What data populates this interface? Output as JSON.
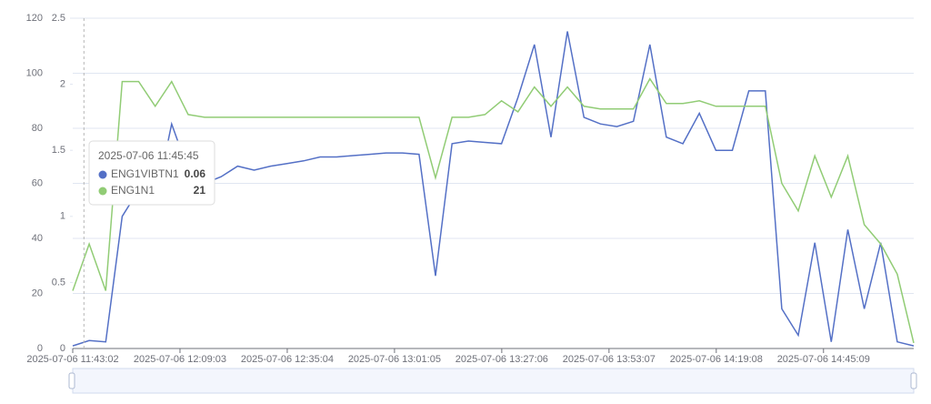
{
  "chart_data": {
    "type": "line",
    "x": [
      "2025-07-06 11:43:02",
      "2025-07-06 11:47:02",
      "2025-07-06 11:51:02",
      "2025-07-06 11:55:02",
      "2025-07-06 11:59:02",
      "2025-07-06 12:03:02",
      "2025-07-06 12:07:02",
      "2025-07-06 12:11:02",
      "2025-07-06 12:15:02",
      "2025-07-06 12:19:02",
      "2025-07-06 12:23:02",
      "2025-07-06 12:27:02",
      "2025-07-06 12:31:02",
      "2025-07-06 12:35:02",
      "2025-07-06 12:39:02",
      "2025-07-06 12:43:02",
      "2025-07-06 12:47:02",
      "2025-07-06 12:51:02",
      "2025-07-06 12:55:02",
      "2025-07-06 12:59:02",
      "2025-07-06 13:03:02",
      "2025-07-06 13:07:02",
      "2025-07-06 13:11:02",
      "2025-07-06 13:15:02",
      "2025-07-06 13:19:02",
      "2025-07-06 13:23:02",
      "2025-07-06 13:27:02",
      "2025-07-06 13:31:02",
      "2025-07-06 13:35:02",
      "2025-07-06 13:39:02",
      "2025-07-06 13:43:02",
      "2025-07-06 13:47:02",
      "2025-07-06 13:51:02",
      "2025-07-06 13:55:02",
      "2025-07-06 13:59:02",
      "2025-07-06 14:03:02",
      "2025-07-06 14:07:02",
      "2025-07-06 14:11:02",
      "2025-07-06 14:15:02",
      "2025-07-06 14:19:02",
      "2025-07-06 14:23:02",
      "2025-07-06 14:27:02",
      "2025-07-06 14:31:02",
      "2025-07-06 14:35:02",
      "2025-07-06 14:39:02",
      "2025-07-06 14:43:02",
      "2025-07-06 14:47:02",
      "2025-07-06 14:51:02",
      "2025-07-06 14:55:02",
      "2025-07-06 14:59:02",
      "2025-07-06 15:03:02",
      "2025-07-06 15:07:02"
    ],
    "xlim": [
      "2025-07-06 11:43:02",
      "2025-07-06 15:07:02"
    ],
    "xticks": [
      "2025-07-06 11:43:02",
      "2025-07-06 12:09:03",
      "2025-07-06 12:35:04",
      "2025-07-06 13:01:05",
      "2025-07-06 13:27:06",
      "2025-07-06 13:53:07",
      "2025-07-06 14:19:08",
      "2025-07-06 14:45:09"
    ],
    "ylim": [
      0,
      120
    ],
    "yticks": [
      0,
      20,
      40,
      60,
      80,
      100,
      120
    ],
    "y2lim": [
      0,
      2.5
    ],
    "y2ticks": [
      0,
      0.5,
      1,
      1.5,
      2,
      2.5
    ],
    "grid": true,
    "series": [
      {
        "name": "ENG1VIBTN1",
        "color": "#5470c6",
        "axis": "y2",
        "values": [
          0.02,
          0.06,
          0.05,
          1.0,
          1.2,
          1.1,
          1.7,
          1.35,
          1.25,
          1.3,
          1.38,
          1.35,
          1.38,
          1.4,
          1.42,
          1.45,
          1.45,
          1.46,
          1.47,
          1.48,
          1.48,
          1.47,
          0.55,
          1.55,
          1.57,
          1.56,
          1.55,
          1.9,
          2.3,
          1.6,
          2.4,
          1.75,
          1.7,
          1.68,
          1.72,
          2.3,
          1.6,
          1.55,
          1.78,
          1.5,
          1.5,
          1.95,
          1.95,
          0.3,
          0.1,
          0.8,
          0.05,
          0.9,
          0.3,
          0.8,
          0.05,
          0.02
        ]
      },
      {
        "name": "ENG1N1",
        "color": "#91cc75",
        "values": [
          21,
          38,
          21,
          97,
          97,
          88,
          97,
          85,
          84,
          84,
          84,
          84,
          84,
          84,
          84,
          84,
          84,
          84,
          84,
          84,
          84,
          84,
          62,
          84,
          84,
          85,
          90,
          86,
          95,
          88,
          95,
          88,
          87,
          87,
          87,
          98,
          89,
          89,
          90,
          88,
          88,
          88,
          88,
          60,
          50,
          70,
          55,
          70,
          45,
          38,
          27,
          2
        ]
      }
    ],
    "tooltip": {
      "title": "2025-07-06 11:45:45",
      "values": [
        0.06,
        21
      ]
    }
  }
}
